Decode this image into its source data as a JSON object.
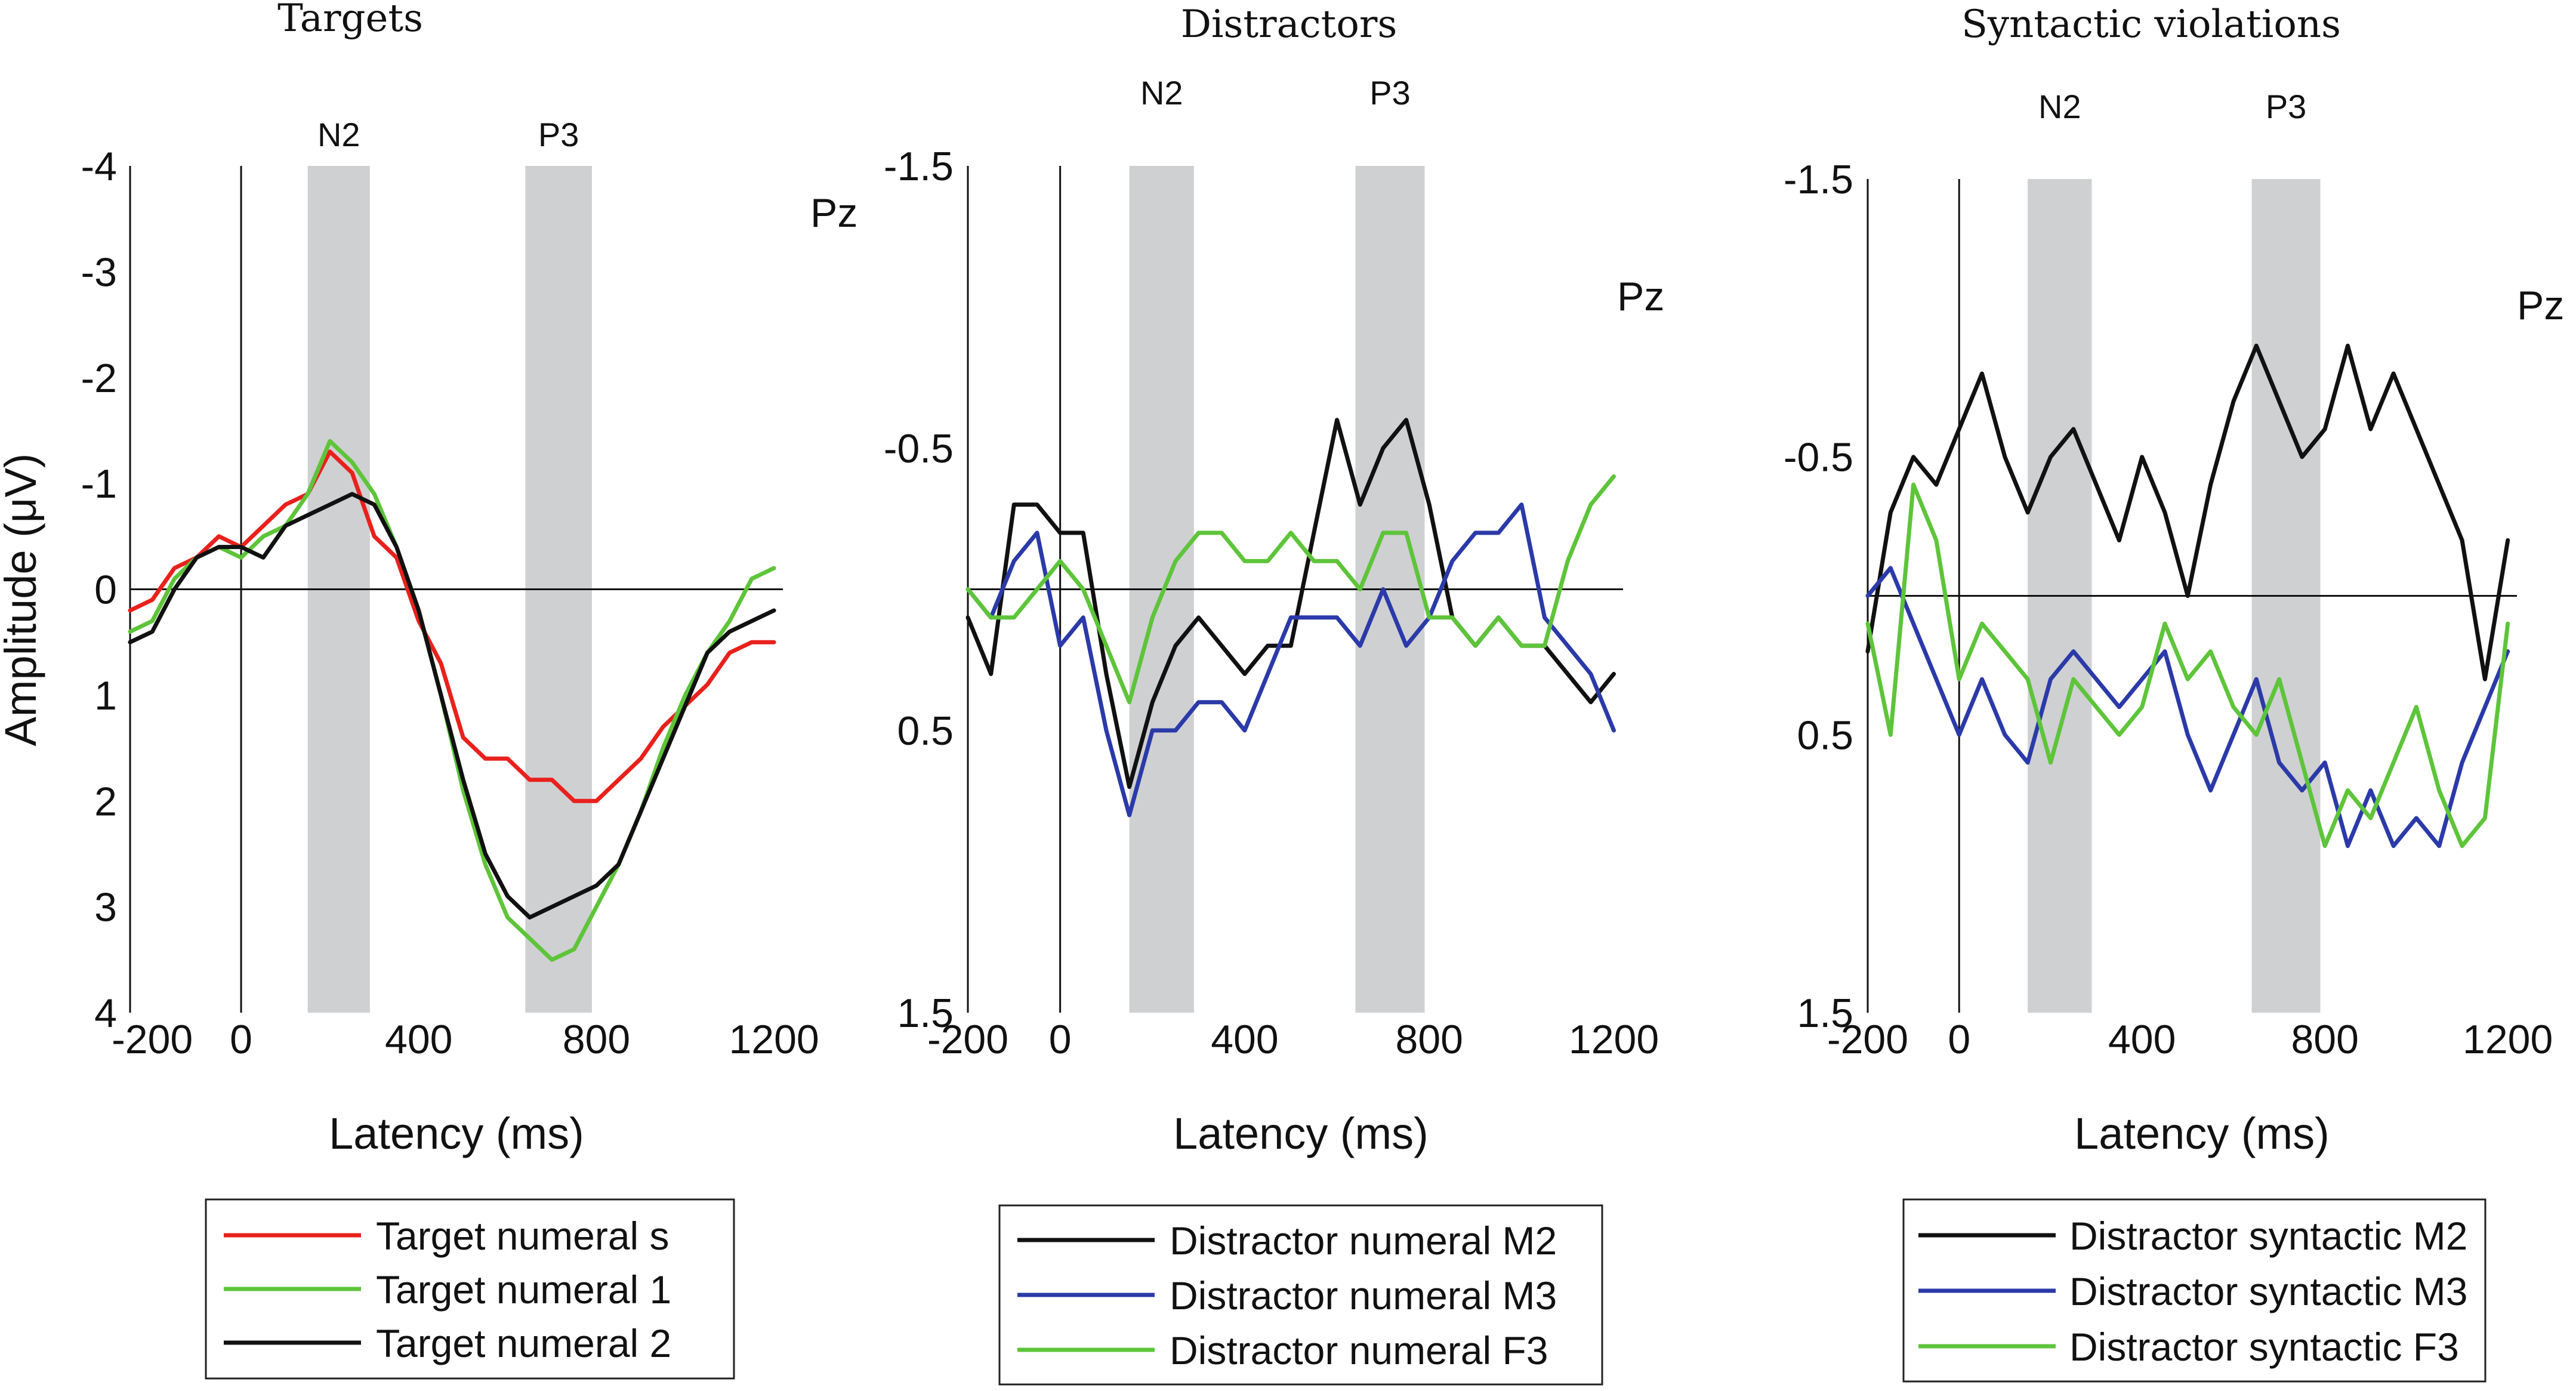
{
  "chart_data": [
    {
      "type": "line",
      "title": "Targets",
      "xlabel": "Latency (ms)",
      "ylabel": "Amplitude (μV)",
      "electrode": "Pz",
      "xlim": [
        -250,
        1220
      ],
      "ylim": [
        -4,
        4
      ],
      "y_inverted": true,
      "xticks": [
        -200,
        0,
        400,
        800,
        1200
      ],
      "xtick_labels": [
        "-200",
        "0",
        "400",
        "800",
        "1200"
      ],
      "yticks": [
        -4,
        -3,
        -2,
        -1,
        0,
        1,
        2,
        3,
        4
      ],
      "ytick_labels": [
        "-4",
        "-3",
        "-2",
        "-1",
        "0",
        "1",
        "2",
        "3",
        "4"
      ],
      "windows": [
        {
          "label": "N2",
          "start": 150,
          "end": 290
        },
        {
          "label": "P3",
          "start": 640,
          "end": 790
        }
      ],
      "x": [
        -250,
        -200,
        -150,
        -100,
        -50,
        0,
        50,
        100,
        150,
        200,
        250,
        300,
        350,
        400,
        450,
        500,
        550,
        600,
        650,
        700,
        750,
        800,
        850,
        900,
        950,
        1000,
        1050,
        1100,
        1150,
        1200
      ],
      "series": [
        {
          "name": "Target numeral s",
          "color": "#e8211c",
          "values": [
            0.2,
            0.1,
            -0.2,
            -0.3,
            -0.5,
            -0.4,
            -0.6,
            -0.8,
            -0.9,
            -1.3,
            -1.1,
            -0.5,
            -0.3,
            0.3,
            0.7,
            1.4,
            1.6,
            1.6,
            1.8,
            1.8,
            2.0,
            2.0,
            1.8,
            1.6,
            1.3,
            1.1,
            0.9,
            0.6,
            0.5,
            0.5
          ]
        },
        {
          "name": "Target numeral 1",
          "color": "#5ec43a",
          "values": [
            0.4,
            0.3,
            -0.1,
            -0.3,
            -0.4,
            -0.3,
            -0.5,
            -0.6,
            -0.9,
            -1.4,
            -1.2,
            -0.9,
            -0.4,
            0.2,
            1.0,
            1.9,
            2.6,
            3.1,
            3.3,
            3.5,
            3.4,
            3.0,
            2.6,
            2.1,
            1.5,
            1.0,
            0.6,
            0.3,
            -0.1,
            -0.2
          ]
        },
        {
          "name": "Target numeral 2",
          "color": "#111111",
          "values": [
            0.5,
            0.4,
            0.0,
            -0.3,
            -0.4,
            -0.4,
            -0.3,
            -0.6,
            -0.7,
            -0.8,
            -0.9,
            -0.8,
            -0.4,
            0.2,
            1.0,
            1.8,
            2.5,
            2.9,
            3.1,
            3.0,
            2.9,
            2.8,
            2.6,
            2.1,
            1.6,
            1.1,
            0.6,
            0.4,
            0.3,
            0.2
          ]
        }
      ]
    },
    {
      "type": "line",
      "title": "Distractors",
      "xlabel": "Latency (ms)",
      "ylabel": "",
      "electrode": "Pz",
      "xlim": [
        -200,
        1220
      ],
      "ylim": [
        -1.5,
        1.5
      ],
      "y_inverted": true,
      "xticks": [
        -200,
        0,
        400,
        800,
        1200
      ],
      "xtick_labels": [
        "-200",
        "0",
        "400",
        "800",
        "1200"
      ],
      "yticks": [
        -1.5,
        -0.5,
        0.5,
        1.5
      ],
      "ytick_labels": [
        "-1.5",
        "-0.5",
        "0.5",
        "1.5"
      ],
      "windows": [
        {
          "label": "N2",
          "start": 150,
          "end": 290
        },
        {
          "label": "P3",
          "start": 640,
          "end": 790
        }
      ],
      "x": [
        -200,
        -150,
        -100,
        -50,
        0,
        50,
        100,
        150,
        200,
        250,
        300,
        350,
        400,
        450,
        500,
        550,
        600,
        650,
        700,
        750,
        800,
        850,
        900,
        950,
        1000,
        1050,
        1100,
        1150,
        1200
      ],
      "series": [
        {
          "name": "Distractor numeral M2",
          "color": "#111111",
          "values": [
            0.1,
            0.3,
            -0.3,
            -0.3,
            -0.2,
            -0.2,
            0.3,
            0.7,
            0.4,
            0.2,
            0.1,
            0.2,
            0.3,
            0.2,
            0.2,
            -0.2,
            -0.6,
            -0.3,
            -0.5,
            -0.6,
            -0.3,
            0.1,
            0.2,
            0.1,
            0.2,
            0.2,
            0.3,
            0.4,
            0.3
          ]
        },
        {
          "name": "Distractor numeral M3",
          "color": "#2b3aa8",
          "values": [
            0.0,
            0.1,
            -0.1,
            -0.2,
            0.2,
            0.1,
            0.5,
            0.8,
            0.5,
            0.5,
            0.4,
            0.4,
            0.5,
            0.3,
            0.1,
            0.1,
            0.1,
            0.2,
            0.0,
            0.2,
            0.1,
            -0.1,
            -0.2,
            -0.2,
            -0.3,
            0.1,
            0.2,
            0.3,
            0.5
          ]
        },
        {
          "name": "Distractor numeral F3",
          "color": "#5ec43a",
          "values": [
            0.0,
            0.1,
            0.1,
            0.0,
            -0.1,
            0.0,
            0.2,
            0.4,
            0.1,
            -0.1,
            -0.2,
            -0.2,
            -0.1,
            -0.1,
            -0.2,
            -0.1,
            -0.1,
            0.0,
            -0.2,
            -0.2,
            0.1,
            0.1,
            0.2,
            0.1,
            0.2,
            0.2,
            -0.1,
            -0.3,
            -0.4
          ]
        }
      ]
    },
    {
      "type": "line",
      "title": "Syntactic violations",
      "xlabel": "Latency (ms)",
      "ylabel": "",
      "electrode": "Pz",
      "xlim": [
        -200,
        1220
      ],
      "ylim": [
        -1.5,
        1.5
      ],
      "y_inverted": true,
      "xticks": [
        -200,
        0,
        400,
        800,
        1200
      ],
      "xtick_labels": [
        "-200",
        "0",
        "400",
        "800",
        "1200"
      ],
      "yticks": [
        -1.5,
        -0.5,
        0.5,
        1.5
      ],
      "ytick_labels": [
        "-1.5",
        "-0.5",
        "0.5",
        "1.5"
      ],
      "windows": [
        {
          "label": "N2",
          "start": 150,
          "end": 290
        },
        {
          "label": "P3",
          "start": 640,
          "end": 790
        }
      ],
      "x": [
        -200,
        -150,
        -100,
        -50,
        0,
        50,
        100,
        150,
        200,
        250,
        300,
        350,
        400,
        450,
        500,
        550,
        600,
        650,
        700,
        750,
        800,
        850,
        900,
        950,
        1000,
        1050,
        1100,
        1150,
        1200
      ],
      "series": [
        {
          "name": "Distractor syntactic M2",
          "color": "#111111",
          "values": [
            0.2,
            -0.3,
            -0.5,
            -0.4,
            -0.6,
            -0.8,
            -0.5,
            -0.3,
            -0.5,
            -0.6,
            -0.4,
            -0.2,
            -0.5,
            -0.3,
            0.0,
            -0.4,
            -0.7,
            -0.9,
            -0.7,
            -0.5,
            -0.6,
            -0.9,
            -0.6,
            -0.8,
            -0.6,
            -0.4,
            -0.2,
            0.3,
            -0.2
          ]
        },
        {
          "name": "Distractor syntactic M3",
          "color": "#2b3aa8",
          "values": [
            0.0,
            -0.1,
            0.1,
            0.3,
            0.5,
            0.3,
            0.5,
            0.6,
            0.3,
            0.2,
            0.3,
            0.4,
            0.3,
            0.2,
            0.5,
            0.7,
            0.5,
            0.3,
            0.6,
            0.7,
            0.6,
            0.9,
            0.7,
            0.9,
            0.8,
            0.9,
            0.6,
            0.4,
            0.2
          ]
        },
        {
          "name": "Distractor syntactic F3",
          "color": "#5ec43a",
          "values": [
            0.1,
            0.5,
            -0.4,
            -0.2,
            0.3,
            0.1,
            0.2,
            0.3,
            0.6,
            0.3,
            0.4,
            0.5,
            0.4,
            0.1,
            0.3,
            0.2,
            0.4,
            0.5,
            0.3,
            0.6,
            0.9,
            0.7,
            0.8,
            0.6,
            0.4,
            0.7,
            0.9,
            0.8,
            0.1
          ]
        }
      ]
    }
  ]
}
